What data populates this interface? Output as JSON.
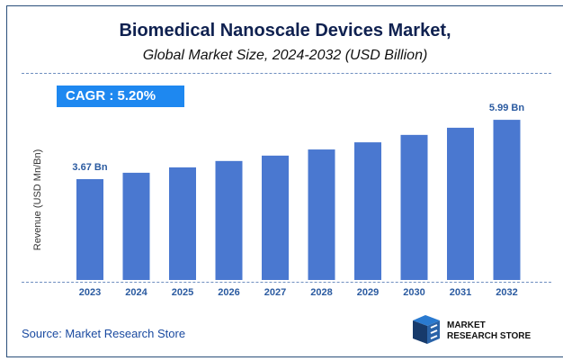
{
  "title": "Biomedical Nanoscale Devices Market,",
  "subtitle": "Global Market Size, 2024-2032 (USD Billion)",
  "cagr": "CAGR :  5.20%",
  "source": "Source: Market Research Store",
  "logo": {
    "line1": "MARKET",
    "line2": "RESEARCH STORE"
  },
  "colors": {
    "bar": "#4a78d0",
    "accent": "#1e88f0",
    "title": "#0f2150"
  },
  "chart_data": {
    "type": "bar",
    "ylabel": "Revenue (USD Mn/Bn)",
    "categories": [
      "2023",
      "2024",
      "2025",
      "2026",
      "2027",
      "2028",
      "2029",
      "2030",
      "2031",
      "2032"
    ],
    "values": [
      3.67,
      3.92,
      4.13,
      4.38,
      4.59,
      4.83,
      5.11,
      5.4,
      5.68,
      5.99
    ],
    "data_labels": {
      "0": "3.67 Bn",
      "9": "5.99 Bn"
    }
  }
}
